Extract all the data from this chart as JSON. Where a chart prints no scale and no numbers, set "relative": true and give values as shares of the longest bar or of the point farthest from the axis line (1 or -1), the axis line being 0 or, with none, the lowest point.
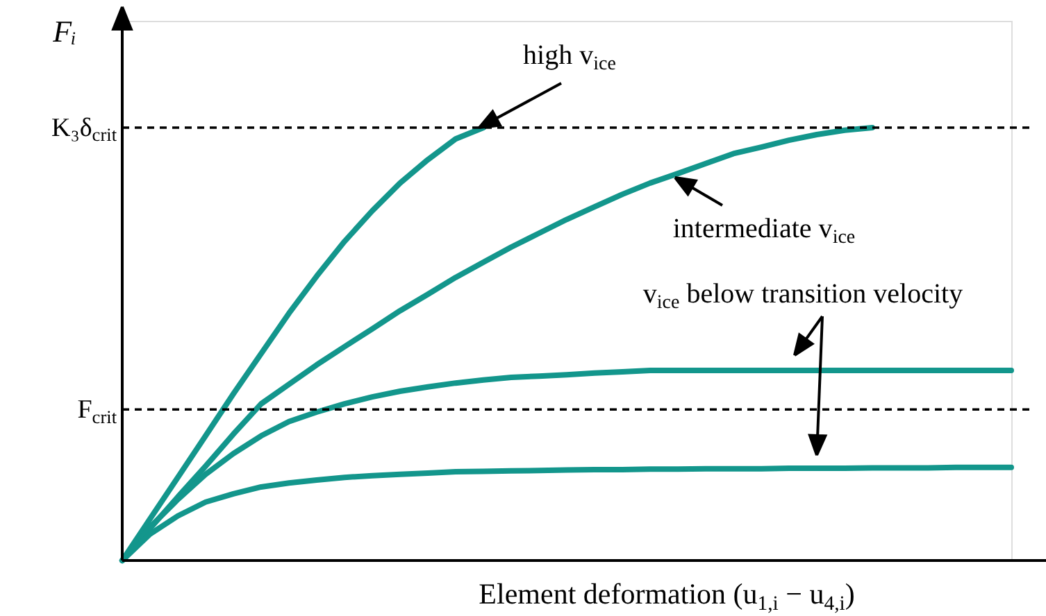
{
  "chart_data": {
    "type": "line",
    "relative": true,
    "ylabel": "Fᵢ",
    "xlabel": "Element deformation (u$_{1,i}$ − u$_{4,i}$)",
    "categories": [
      null,
      null,
      null,
      null,
      null,
      null,
      null,
      null,
      null,
      null,
      null,
      null,
      null,
      null,
      null,
      null,
      null,
      null,
      null,
      null,
      null,
      null,
      null,
      null,
      null,
      null,
      null,
      null,
      null,
      null,
      null,
      null,
      null
    ],
    "series": [
      {
        "color": "#13968c",
        "values": [
          0,
          0.096,
          0.192,
          0.288,
          0.385,
          0.478,
          0.571,
          0.657,
          0.737,
          0.808,
          0.872,
          0.926,
          0.974,
          1.0,
          null,
          null,
          null,
          null,
          null,
          null,
          null,
          null,
          null,
          null,
          null,
          null,
          null,
          null,
          null,
          null,
          null,
          null,
          null
        ]
      },
      {
        "color": "#13968c",
        "values": [
          0,
          0.074,
          0.147,
          0.218,
          0.292,
          0.362,
          0.407,
          0.452,
          0.494,
          0.535,
          0.577,
          0.615,
          0.654,
          0.689,
          0.724,
          0.756,
          0.788,
          0.817,
          0.846,
          0.872,
          0.894,
          0.917,
          0.94,
          0.955,
          0.971,
          0.984,
          0.994,
          1.0,
          null,
          null,
          null,
          null,
          null
        ]
      },
      {
        "color": "#13968c",
        "values": [
          0,
          0.077,
          0.141,
          0.199,
          0.247,
          0.288,
          0.321,
          0.343,
          0.362,
          0.378,
          0.391,
          0.401,
          0.41,
          0.417,
          0.423,
          0.426,
          0.429,
          0.433,
          0.436,
          0.439,
          0.439,
          0.439,
          0.439,
          0.439,
          0.439,
          0.439,
          0.439,
          0.439,
          0.439,
          0.439,
          0.439,
          0.439,
          0.439
        ]
      },
      {
        "color": "#13968c",
        "values": [
          0,
          0.061,
          0.103,
          0.135,
          0.154,
          0.17,
          0.179,
          0.186,
          0.192,
          0.196,
          0.199,
          0.202,
          0.205,
          0.206,
          0.207,
          0.208,
          0.209,
          0.21,
          0.21,
          0.211,
          0.211,
          0.212,
          0.212,
          0.212,
          0.213,
          0.213,
          0.213,
          0.214,
          0.214,
          0.214,
          0.215,
          0.215,
          0.215
        ]
      }
    ],
    "ref_lines": [
      {
        "axis": "y",
        "value": 1.0,
        "label": "K₃δ$_{crit}$",
        "color": "#000000",
        "line_style": "dashed"
      },
      {
        "axis": "y",
        "value": 0.349,
        "label": "F$_{crit}$",
        "color": "#000000",
        "line_style": "dashed"
      }
    ],
    "annotations": [
      "high v$_{ice}$",
      "intermediate v$_{ice}$",
      "v$_{ice}$ below transition velocity"
    ]
  }
}
